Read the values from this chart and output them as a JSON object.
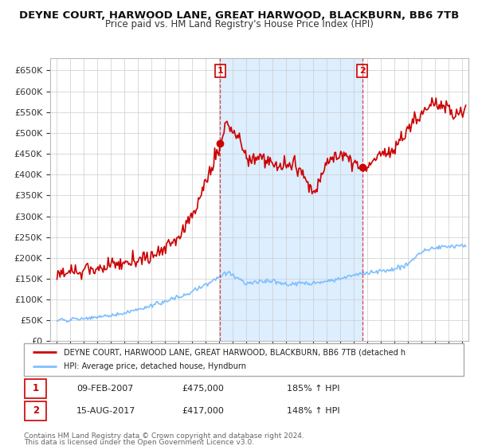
{
  "title": "DEYNE COURT, HARWOOD LANE, GREAT HARWOOD, BLACKBURN, BB6 7TB",
  "subtitle": "Price paid vs. HM Land Registry's House Price Index (HPI)",
  "ylabel_ticks": [
    "£0",
    "£50K",
    "£100K",
    "£150K",
    "£200K",
    "£250K",
    "£300K",
    "£350K",
    "£400K",
    "£450K",
    "£500K",
    "£550K",
    "£600K",
    "£650K"
  ],
  "ytick_values": [
    0,
    50000,
    100000,
    150000,
    200000,
    250000,
    300000,
    350000,
    400000,
    450000,
    500000,
    550000,
    600000,
    650000
  ],
  "xlim_start": 1994.5,
  "xlim_end": 2025.5,
  "ylim_min": 0,
  "ylim_max": 680000,
  "red_color": "#cc0000",
  "blue_color": "#7fbfff",
  "shade_color": "#ddeeff",
  "legend_line1": "DEYNE COURT, HARWOOD LANE, GREAT HARWOOD, BLACKBURN, BB6 7TB (detached h",
  "legend_line2": "HPI: Average price, detached house, Hyndburn",
  "sale1_date": 2007.1,
  "sale1_price": 475000,
  "sale2_date": 2017.62,
  "sale2_price": 417000,
  "footer1": "Contains HM Land Registry data © Crown copyright and database right 2024.",
  "footer2": "This data is licensed under the Open Government Licence v3.0.",
  "table_row1": [
    "1",
    "09-FEB-2007",
    "£475,000",
    "185% ↑ HPI"
  ],
  "table_row2": [
    "2",
    "15-AUG-2017",
    "£417,000",
    "148% ↑ HPI"
  ],
  "red_seed": 123,
  "blue_seed": 456
}
